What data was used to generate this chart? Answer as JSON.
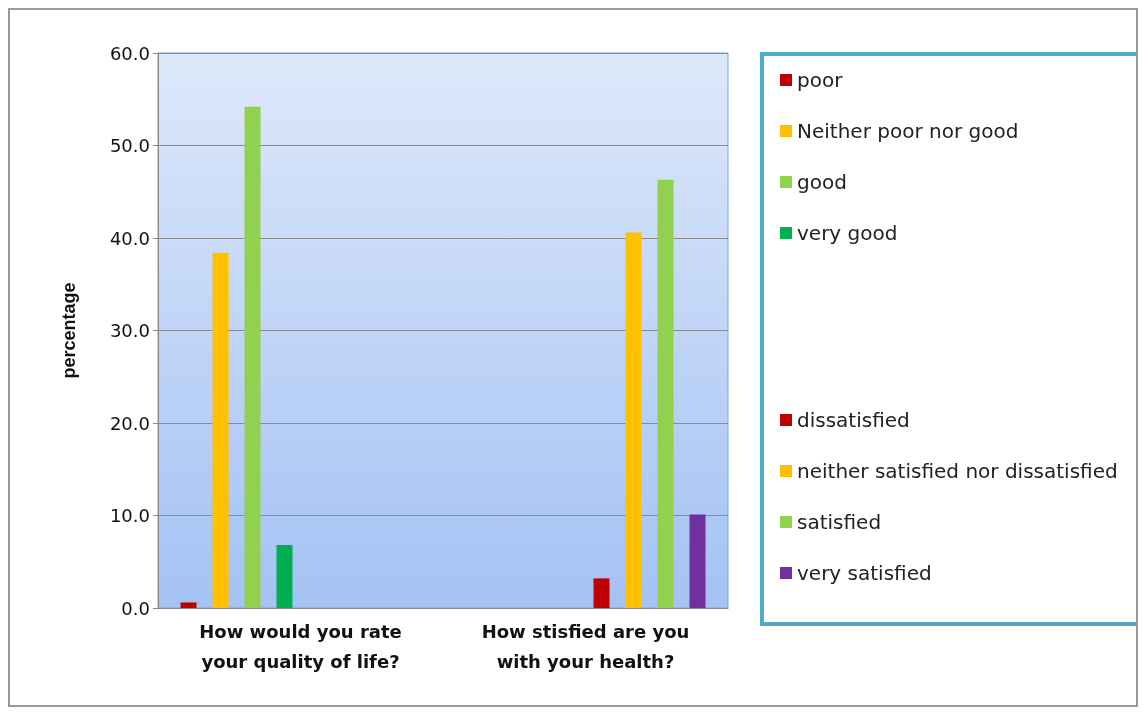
{
  "chart_data": {
    "type": "bar",
    "ylabel": "percentage",
    "categories": [
      "How would you rate\nyour quality of life?",
      "How stisfied are you\nwith your health?"
    ],
    "series": [
      {
        "name": "poor",
        "color": "#c00000",
        "values": [
          0.6,
          null
        ]
      },
      {
        "name": "Neither poor nor good",
        "color": "#ffc000",
        "values": [
          38.4,
          null
        ]
      },
      {
        "name": "good",
        "color": "#92d050",
        "values": [
          54.2,
          null
        ]
      },
      {
        "name": "very good",
        "color": "#00b050",
        "values": [
          6.8,
          null
        ]
      },
      {
        "name": "dissatisfied",
        "color": "#c00000",
        "values": [
          null,
          3.2
        ]
      },
      {
        "name": "neither satisfied nor dissatisfied",
        "color": "#ffc000",
        "values": [
          null,
          40.6
        ]
      },
      {
        "name": "satisfied",
        "color": "#92d050",
        "values": [
          null,
          46.3
        ]
      },
      {
        "name": "very satisfied",
        "color": "#7030a0",
        "values": [
          null,
          10.1
        ]
      }
    ],
    "ylim": [
      0,
      60
    ],
    "yticks": [
      {
        "value": 0,
        "label": "0.0"
      },
      {
        "value": 10,
        "label": "10.0"
      },
      {
        "value": 20,
        "label": "20.0"
      },
      {
        "value": 30,
        "label": "30.0"
      },
      {
        "value": 40,
        "label": "40.0"
      },
      {
        "value": 50,
        "label": "50.0"
      },
      {
        "value": 60,
        "label": "60.0"
      }
    ],
    "grid": "y",
    "legend": "right"
  }
}
